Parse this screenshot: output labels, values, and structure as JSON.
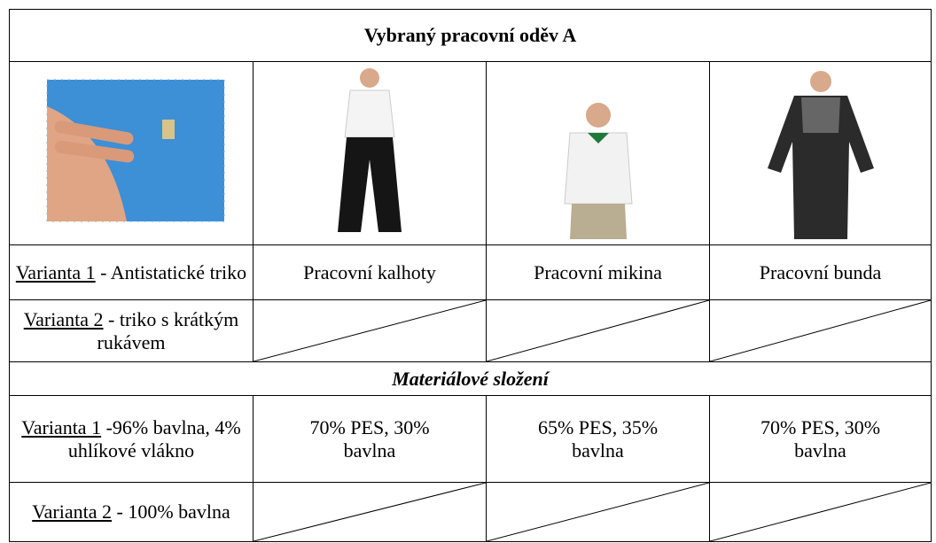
{
  "table": {
    "title": "Vybraný pracovní oděv A",
    "rows": [
      [
        {
          "underlined": "Varianta 1",
          "text": " - Antistatické triko"
        },
        "Pracovní kalhoty",
        "Pracovní mikina",
        "Pracovní bunda"
      ],
      [
        {
          "underlined": "Varianta 2",
          "text": " - triko s krátkým rukávem"
        }
      ]
    ],
    "section": "Materiálové složení",
    "material_rows": [
      [
        {
          "underlined": "Varianta 1",
          "text": " -96% bavlna, 4% uhlíkové vlákno"
        },
        "70% PES, 30% bavlna",
        "65% PES, 35% bavlna",
        "70% PES, 30% bavlna"
      ],
      [
        {
          "underlined": "Varianta 2",
          "text": " - 100% bavlna"
        }
      ]
    ]
  }
}
